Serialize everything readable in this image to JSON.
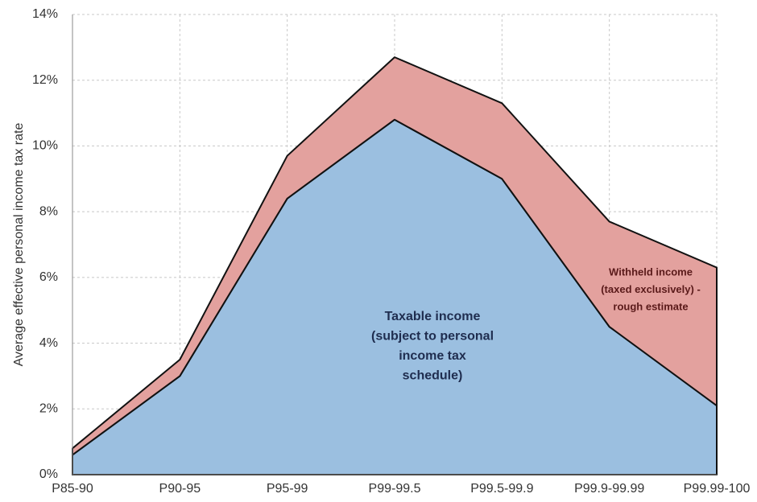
{
  "chart_data": {
    "type": "stacked_area",
    "y_axis_label": "Average effective personal income tax rate",
    "categories": [
      "P85-90",
      "P90-95",
      "P95-99",
      "P99-99.5",
      "P99.5-99.9",
      "P99.9-99.99",
      "P99.99-100"
    ],
    "series": [
      {
        "color": "#9bbfe0",
        "values": [
          0.6,
          3.0,
          8.4,
          10.8,
          9.0,
          4.5,
          2.1
        ]
      },
      {
        "color": "#e3a19e",
        "values": [
          0.2,
          0.5,
          1.3,
          1.9,
          2.3,
          3.2,
          4.2
        ]
      }
    ],
    "ylim": [
      0,
      14
    ],
    "yticks": [
      {
        "value": 0,
        "label": "0%"
      },
      {
        "value": 2,
        "label": "2%"
      },
      {
        "value": 4,
        "label": "4%"
      },
      {
        "value": 6,
        "label": "6%"
      },
      {
        "value": 8,
        "label": "8%"
      },
      {
        "value": 10,
        "label": "10%"
      },
      {
        "value": 12,
        "label": "12%"
      },
      {
        "value": 14,
        "label": "14%"
      }
    ],
    "grid": true,
    "annotations": [
      {
        "lines": [
          "Taxable income",
          "(subject to personal",
          "income tax",
          "schedule)"
        ]
      },
      {
        "lines": [
          "Withheld income",
          "(taxed exclusively) -",
          "rough estimate"
        ]
      }
    ]
  }
}
